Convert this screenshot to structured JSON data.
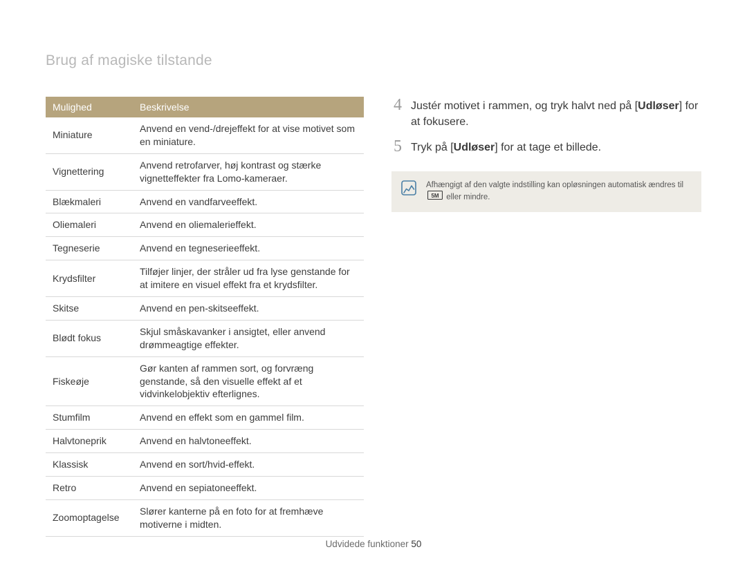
{
  "title": "Brug af magiske tilstande",
  "table": {
    "header_bg": "#b6a47d",
    "header_fg": "#ffffff",
    "border_color": "#d8d8d8",
    "columns": [
      "Mulighed",
      "Beskrivelse"
    ],
    "rows": [
      [
        "Miniature",
        "Anvend en vend-/drejeffekt for at vise motivet som en miniature."
      ],
      [
        "Vignettering",
        "Anvend retrofarver, høj kontrast og stærke vignetteffekter fra Lomo-kameraer."
      ],
      [
        "Blækmaleri",
        "Anvend en vandfarveeffekt."
      ],
      [
        "Oliemaleri",
        "Anvend en oliemalerieffekt."
      ],
      [
        "Tegneserie",
        "Anvend en tegneserieeffekt."
      ],
      [
        "Krydsfilter",
        "Tilføjer linjer, der stråler ud fra lyse genstande for at imitere en visuel effekt fra et krydsfilter."
      ],
      [
        "Skitse",
        "Anvend en pen-skitseeffekt."
      ],
      [
        "Blødt fokus",
        "Skjul småskavanker i ansigtet, eller anvend drømmeagtige effekter."
      ],
      [
        "Fiskeøje",
        "Gør kanten af rammen sort, og forvræng genstande, så den visuelle effekt af et vidvinkelobjektiv efterlignes."
      ],
      [
        "Stumfilm",
        "Anvend en effekt som en gammel film."
      ],
      [
        "Halvtoneprik",
        "Anvend en halvtoneeffekt."
      ],
      [
        "Klassisk",
        "Anvend en sort/hvid-effekt."
      ],
      [
        "Retro",
        "Anvend en sepiatoneeffekt."
      ],
      [
        "Zoomoptagelse",
        "Slører kanterne på en foto for at fremhæve motiverne i midten."
      ]
    ]
  },
  "steps": {
    "4": {
      "num": "4",
      "pre": "Justér motivet i rammen, og tryk halvt ned på [",
      "bold": "Udløser",
      "post": "] for at fokusere."
    },
    "5": {
      "num": "5",
      "pre": "Tryk på [",
      "bold": "Udløser",
      "post": "] for at tage et billede."
    }
  },
  "note": {
    "bg": "#eeece6",
    "icon_color": "#4a7fa5",
    "line1": "Afhængigt af den valgte indstilling kan opløsningen automatisk ændres til",
    "line2_suffix": " eller mindre.",
    "res_label": "5M"
  },
  "footer": {
    "section": "Udvidede funktioner ",
    "page": "50"
  }
}
